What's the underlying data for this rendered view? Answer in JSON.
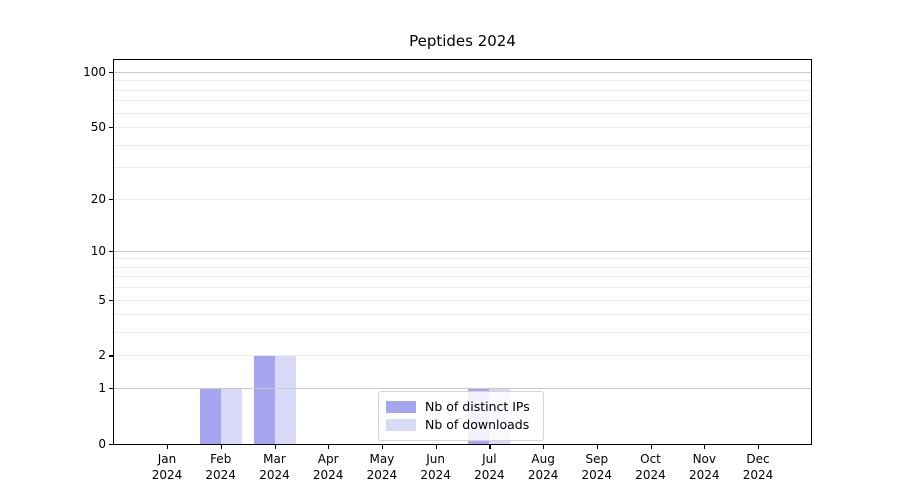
{
  "chart_data": {
    "type": "bar",
    "title": "Peptides 2024",
    "x_categories": [
      "Jan",
      "Feb",
      "Mar",
      "Apr",
      "May",
      "Jun",
      "Jul",
      "Aug",
      "Sep",
      "Oct",
      "Nov",
      "Dec"
    ],
    "x_year": "2024",
    "series": [
      {
        "name": "Nb of distinct IPs",
        "color": "#a5a5f0",
        "values": [
          0,
          1,
          2,
          0,
          0,
          0,
          1,
          0,
          0,
          0,
          0,
          0
        ]
      },
      {
        "name": "Nb of downloads",
        "color": "#d9d9f8",
        "values": [
          0,
          1,
          2,
          0,
          0,
          0,
          1,
          0,
          0,
          0,
          0,
          0
        ]
      }
    ],
    "y_ticks": [
      0,
      1,
      2,
      5,
      10,
      20,
      50,
      100
    ],
    "y_major_gridlines": [
      1,
      10,
      100
    ],
    "y_minor_gridlines": [
      2,
      3,
      4,
      5,
      6,
      7,
      8,
      9,
      20,
      30,
      40,
      50,
      60,
      70,
      80,
      90
    ],
    "scale": "log1p",
    "ylim": [
      0,
      116
    ],
    "grid": true,
    "legend_position": "lower center"
  },
  "colors": {
    "axis": "#000000",
    "major_grid": "#c9c9c9",
    "minor_grid": "#ebebeb",
    "background": "#ffffff",
    "legend_border": "#d5d5d5"
  }
}
